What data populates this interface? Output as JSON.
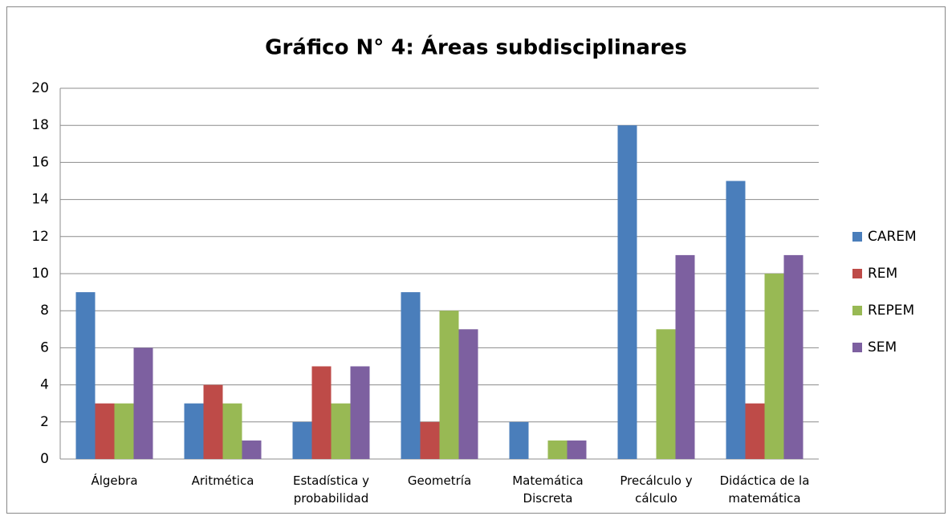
{
  "chart_data": {
    "type": "bar",
    "title": "Gráfico N° 4: Áreas subdisciplinares",
    "categories": [
      "Álgebra",
      "Aritmética",
      "Estadística y probabilidad",
      "Geometría",
      "Matemática Discreta",
      "Precálculo y cálculo",
      "Didáctica de la matemática"
    ],
    "series": [
      {
        "name": "CAREM",
        "color": "#4a7ebb",
        "values": [
          9,
          3,
          2,
          9,
          2,
          18,
          15
        ]
      },
      {
        "name": "REM",
        "color": "#be4b48",
        "values": [
          3,
          4,
          5,
          2,
          0,
          0,
          3
        ]
      },
      {
        "name": "REPEM",
        "color": "#98b954",
        "values": [
          3,
          3,
          3,
          8,
          1,
          7,
          10
        ]
      },
      {
        "name": "SEM",
        "color": "#7d60a0",
        "values": [
          6,
          1,
          5,
          7,
          1,
          11,
          11
        ]
      }
    ],
    "ylim": [
      0,
      20
    ],
    "yticks": [
      0,
      2,
      4,
      6,
      8,
      10,
      12,
      14,
      16,
      18,
      20
    ],
    "grid": true,
    "legend": "right"
  }
}
